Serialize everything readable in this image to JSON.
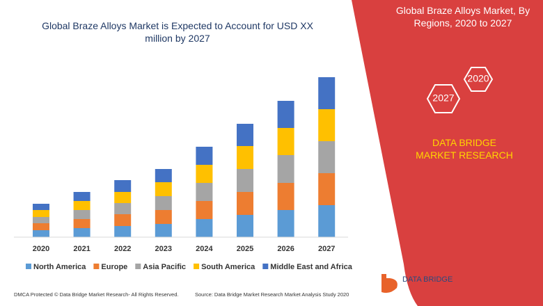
{
  "chart_data": {
    "type": "bar",
    "stacked": true,
    "title": "Global Braze Alloys Market is Expected to Account for USD XX million by 2027",
    "categories": [
      "2020",
      "2021",
      "2022",
      "2023",
      "2024",
      "2025",
      "2026",
      "2027"
    ],
    "series": [
      {
        "name": "North America",
        "color": "#5b9bd5",
        "values": [
          10,
          13,
          16,
          19,
          26,
          32,
          39,
          46
        ]
      },
      {
        "name": "Europe",
        "color": "#ed7d31",
        "values": [
          10,
          13,
          17,
          20,
          26,
          33,
          39,
          46
        ]
      },
      {
        "name": "Asia Pacific",
        "color": "#a5a5a5",
        "values": [
          9,
          13,
          16,
          20,
          26,
          33,
          40,
          46
        ]
      },
      {
        "name": "South America",
        "color": "#ffc000",
        "values": [
          10,
          13,
          16,
          20,
          26,
          33,
          39,
          46
        ]
      },
      {
        "name": "Middle East and Africa",
        "color": "#4472c4",
        "values": [
          9,
          13,
          17,
          19,
          26,
          32,
          39,
          46
        ]
      }
    ]
  },
  "side_panel": {
    "title": "Global Braze Alloys Market, By Regions, 2020 to 2027",
    "hex_start": "2020",
    "hex_end": "2027",
    "brand": "DATA BRIDGE MARKET RESEARCH"
  },
  "footer": {
    "dmca": "DMCA Protected © Data Bridge Market Research- All Rights Reserved.",
    "source": "Source: Data Bridge Market Research Market Analysis Study 2020",
    "logo": "DATA BRIDGE"
  }
}
